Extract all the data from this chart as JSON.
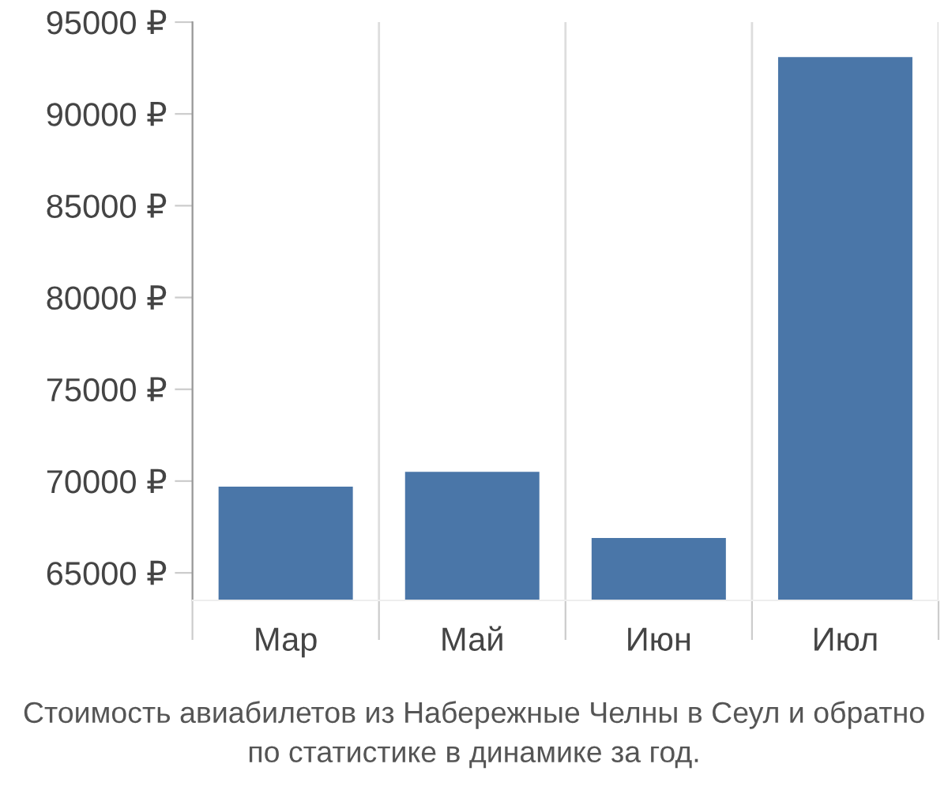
{
  "chart_data": {
    "type": "bar",
    "categories": [
      "Мар",
      "Май",
      "Июн",
      "Июл"
    ],
    "values": [
      69700,
      70500,
      66900,
      93100
    ],
    "color": "#4a76a8",
    "ylim": [
      63500,
      95000
    ],
    "yticks": [
      {
        "value": 65000,
        "label": "65000 ₽"
      },
      {
        "value": 70000,
        "label": "70000 ₽"
      },
      {
        "value": 75000,
        "label": "75000 ₽"
      },
      {
        "value": 80000,
        "label": "80000 ₽"
      },
      {
        "value": 85000,
        "label": "85000 ₽"
      },
      {
        "value": 90000,
        "label": "90000 ₽"
      },
      {
        "value": 95000,
        "label": "95000 ₽"
      }
    ],
    "grid": "x",
    "annotations": [
      "Стоимость авиабилетов из Набережные Челны в Сеул и обратно",
      "по статистике в динамике за год."
    ]
  }
}
